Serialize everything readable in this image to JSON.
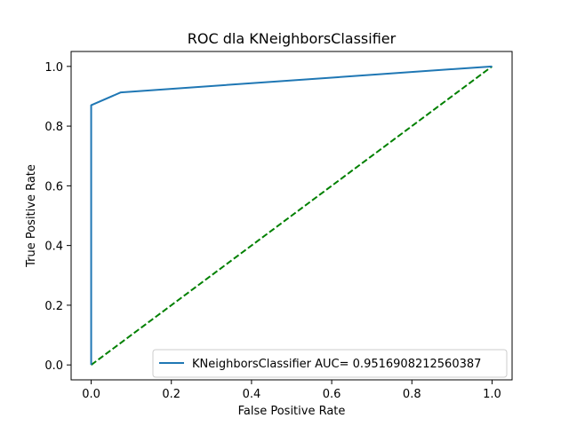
{
  "chart_data": {
    "type": "line",
    "title": "ROC dla KNeighborsClassifier",
    "xlabel": "False Positive Rate",
    "ylabel": "True Positive Rate",
    "xlim": [
      -0.05,
      1.05
    ],
    "ylim": [
      -0.05,
      1.05
    ],
    "xticks": [
      0.0,
      0.2,
      0.4,
      0.6,
      0.8,
      1.0
    ],
    "yticks": [
      0.0,
      0.2,
      0.4,
      0.6,
      0.8,
      1.0
    ],
    "xtick_labels": [
      "0.0",
      "0.2",
      "0.4",
      "0.6",
      "0.8",
      "1.0"
    ],
    "ytick_labels": [
      "0.0",
      "0.2",
      "0.4",
      "0.6",
      "0.8",
      "1.0"
    ],
    "grid": false,
    "legend_position": "lower-right",
    "series": [
      {
        "name": "KNeighborsClassifier AUC= 0.9516908212560387",
        "color": "#1f77b4",
        "style": "solid",
        "x": [
          0.0,
          0.0,
          0.074,
          1.0
        ],
        "y": [
          0.0,
          0.87,
          0.913,
          1.0
        ]
      },
      {
        "color": "#008000",
        "style": "dashed",
        "x": [
          0.0,
          1.0
        ],
        "y": [
          0.0,
          1.0
        ]
      }
    ]
  }
}
